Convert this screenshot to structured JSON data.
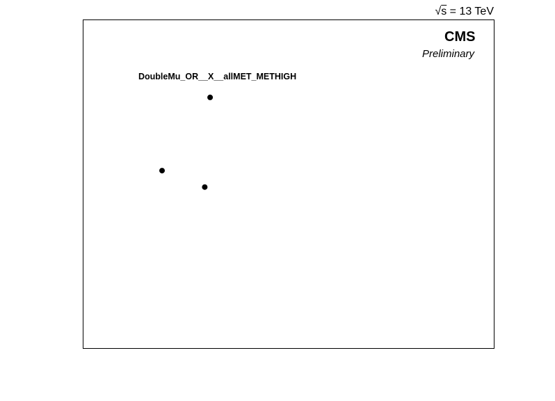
{
  "header": {
    "energy_sqrt": "s",
    "energy_text": " = 13 TeV"
  },
  "experiment": "CMS",
  "status": "Preliminary",
  "channel_label": "DoubleMu_OR__X__allMET_METHIGH",
  "chart_data": {
    "type": "scatter",
    "title": "",
    "xlabel": "",
    "ylabel": "",
    "xlim": [
      0,
      1
    ],
    "ylim": [
      0,
      1
    ],
    "grid": false,
    "axis_ticks": false,
    "points": [
      {
        "x": 0.309,
        "y": 0.764
      },
      {
        "x": 0.192,
        "y": 0.541
      },
      {
        "x": 0.296,
        "y": 0.491
      }
    ],
    "marker_color": "#000000"
  }
}
